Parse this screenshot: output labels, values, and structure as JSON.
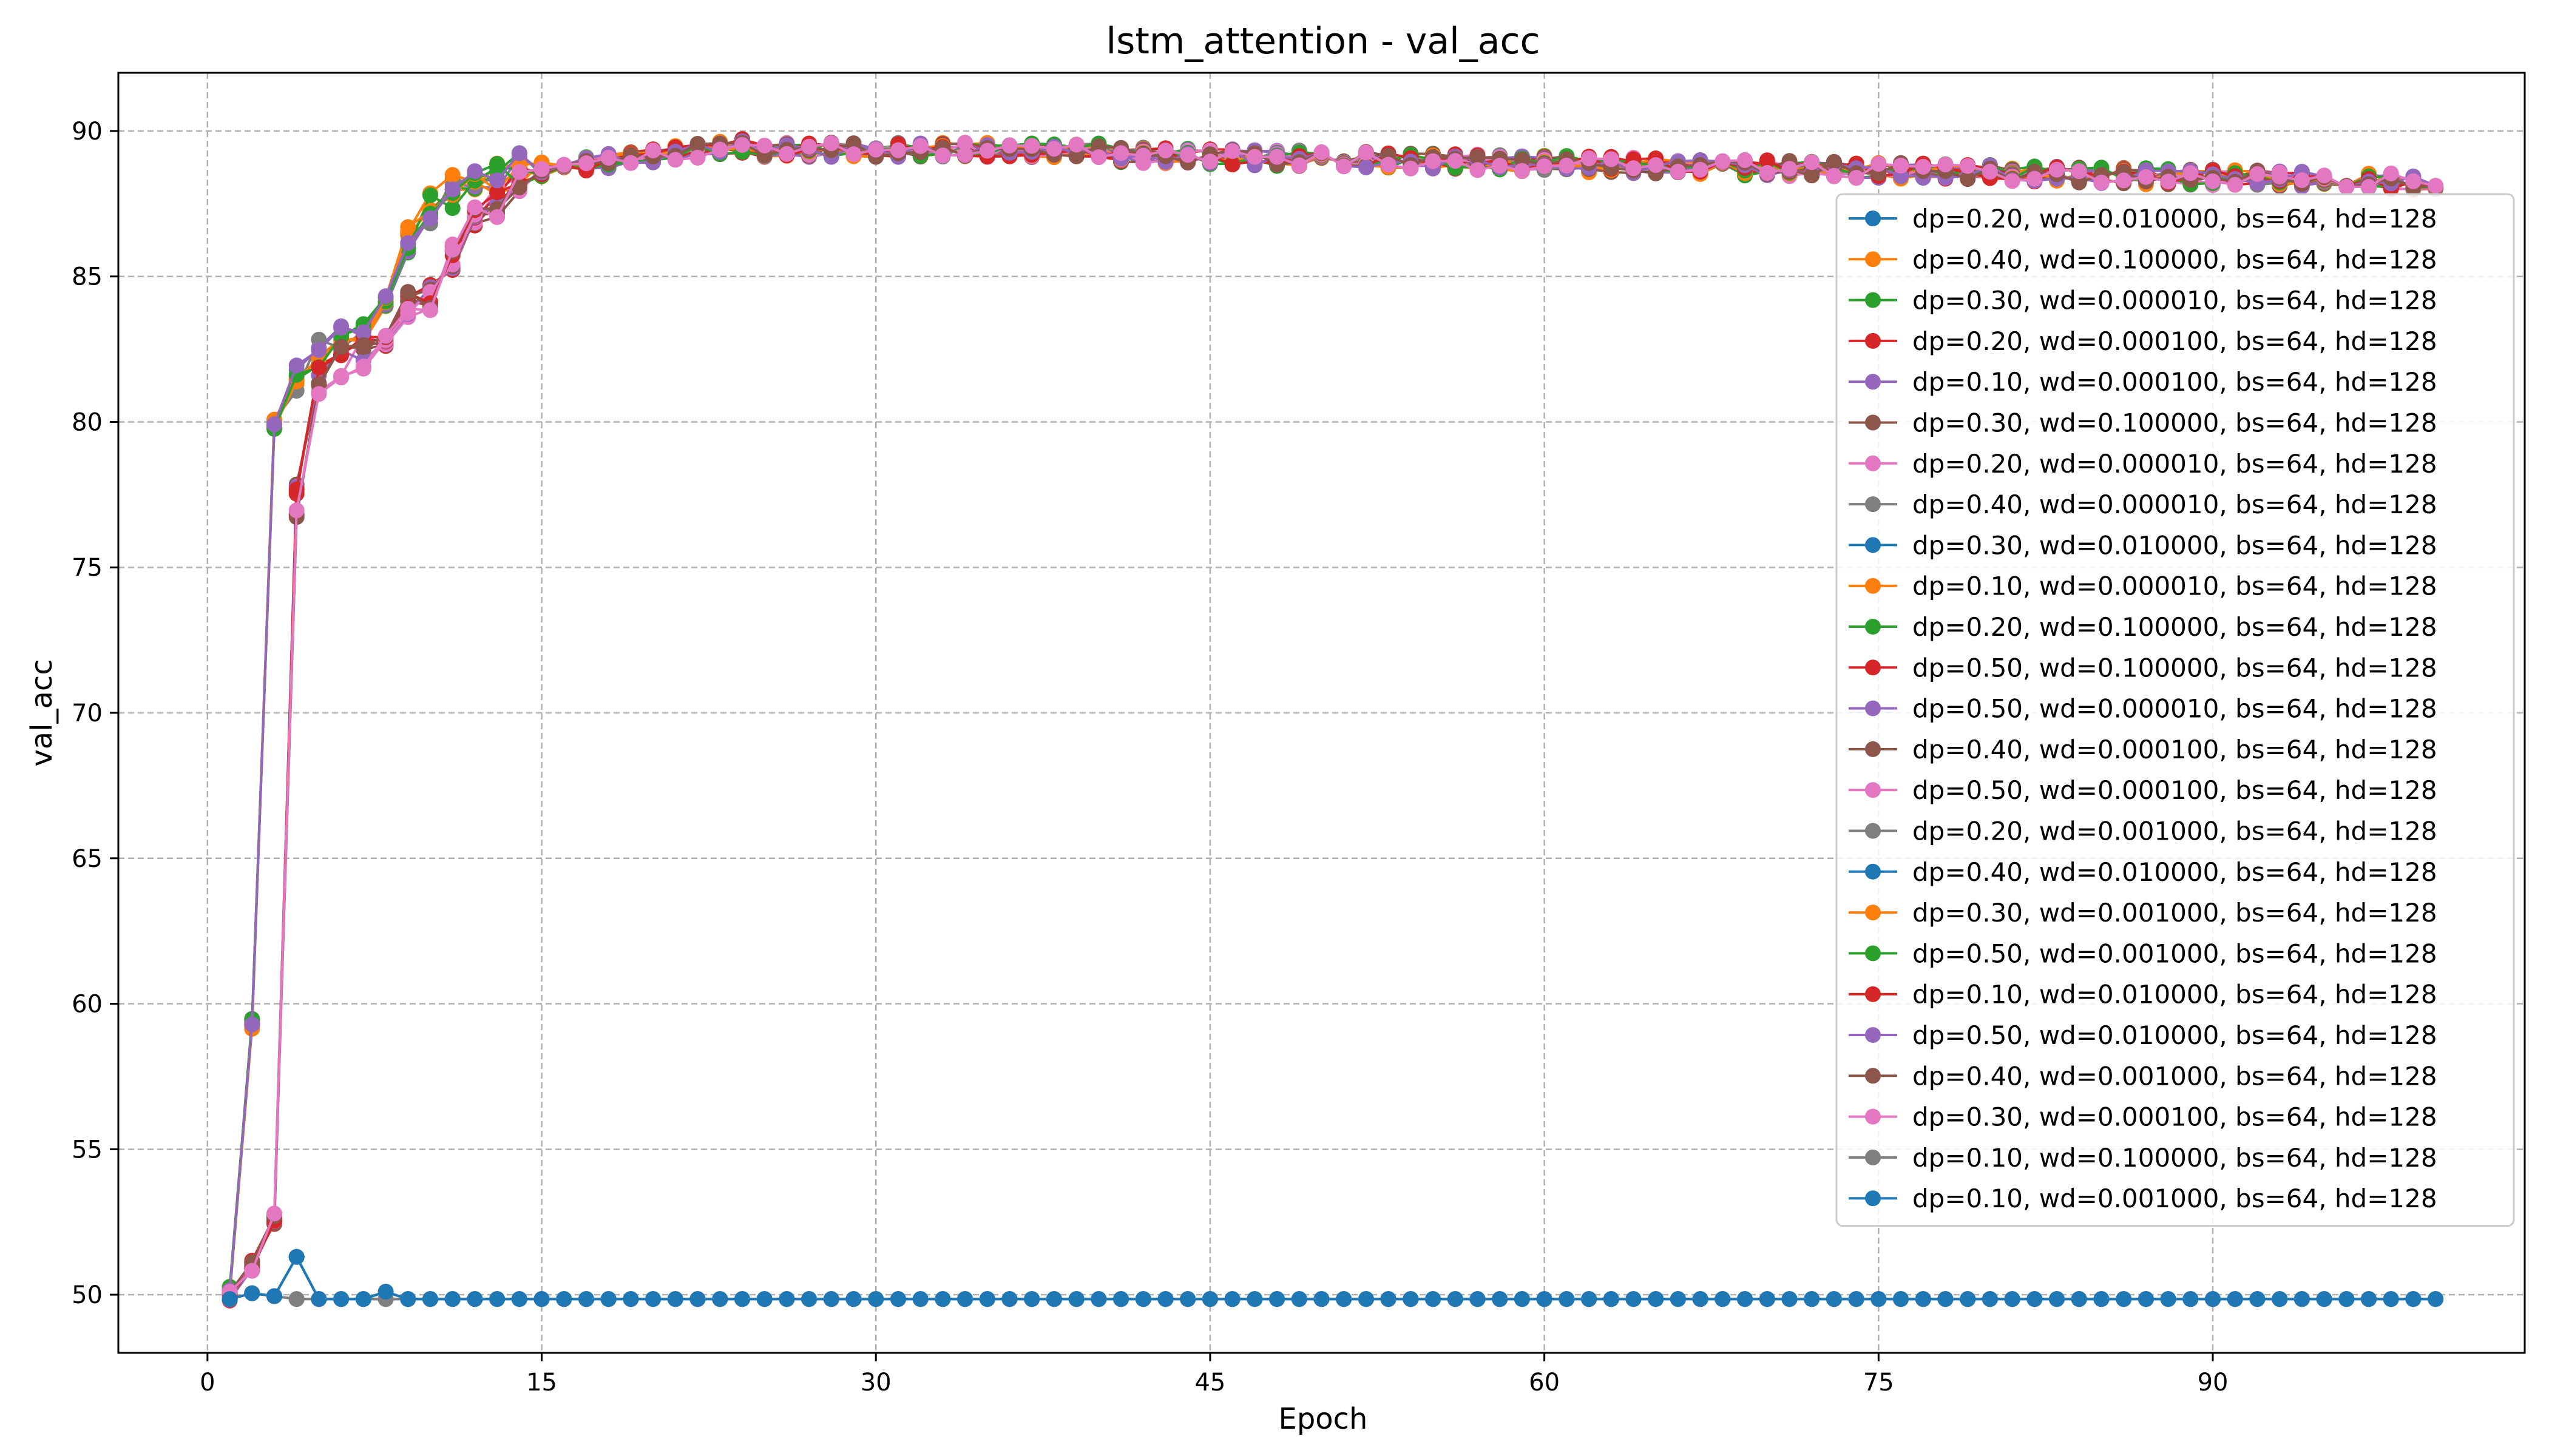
{
  "chart_data": {
    "type": "line",
    "title": "lstm_attention - val_acc",
    "xlabel": "Epoch",
    "ylabel": "val_acc",
    "xlim": [
      -4,
      104
    ],
    "ylim": [
      48.0,
      92.0
    ],
    "xticks": [
      0,
      15,
      30,
      45,
      60,
      75,
      90
    ],
    "yticks": [
      50,
      55,
      60,
      65,
      70,
      75,
      80,
      85,
      90
    ],
    "grid": true,
    "legend_position": "right",
    "colors": [
      "#1f77b4",
      "#ff7f0e",
      "#2ca02c",
      "#d62728",
      "#9467bd",
      "#8c564b",
      "#e377c2",
      "#7f7f7f"
    ],
    "series": [
      {
        "name": "dp=0.20, wd=0.010000, bs=64, hd=128",
        "color": "#1f77b4",
        "profile": "stuck"
      },
      {
        "name": "dp=0.40, wd=0.100000, bs=64, hd=128",
        "color": "#ff7f0e",
        "profile": "fast"
      },
      {
        "name": "dp=0.30, wd=0.000010, bs=64, hd=128",
        "color": "#2ca02c",
        "profile": "fast"
      },
      {
        "name": "dp=0.20, wd=0.000100, bs=64, hd=128",
        "color": "#d62728",
        "profile": "slow"
      },
      {
        "name": "dp=0.10, wd=0.000100, bs=64, hd=128",
        "color": "#9467bd",
        "profile": "fast"
      },
      {
        "name": "dp=0.30, wd=0.100000, bs=64, hd=128",
        "color": "#8c564b",
        "profile": "slow"
      },
      {
        "name": "dp=0.20, wd=0.000010, bs=64, hd=128",
        "color": "#e377c2",
        "profile": "slow"
      },
      {
        "name": "dp=0.40, wd=0.000010, bs=64, hd=128",
        "color": "#7f7f7f",
        "profile": "fast"
      },
      {
        "name": "dp=0.30, wd=0.010000, bs=64, hd=128",
        "color": "#1f77b4",
        "profile": "stuck"
      },
      {
        "name": "dp=0.10, wd=0.000010, bs=64, hd=128",
        "color": "#ff7f0e",
        "profile": "fast"
      },
      {
        "name": "dp=0.20, wd=0.100000, bs=64, hd=128",
        "color": "#2ca02c",
        "profile": "fast"
      },
      {
        "name": "dp=0.50, wd=0.100000, bs=64, hd=128",
        "color": "#d62728",
        "profile": "slow"
      },
      {
        "name": "dp=0.50, wd=0.000010, bs=64, hd=128",
        "color": "#9467bd",
        "profile": "slow"
      },
      {
        "name": "dp=0.40, wd=0.000100, bs=64, hd=128",
        "color": "#8c564b",
        "profile": "slow"
      },
      {
        "name": "dp=0.50, wd=0.000100, bs=64, hd=128",
        "color": "#e377c2",
        "profile": "slow"
      },
      {
        "name": "dp=0.20, wd=0.001000, bs=64, hd=128",
        "color": "#7f7f7f",
        "profile": "stuck"
      },
      {
        "name": "dp=0.40, wd=0.010000, bs=64, hd=128",
        "color": "#1f77b4",
        "profile": "stuck"
      },
      {
        "name": "dp=0.30, wd=0.001000, bs=64, hd=128",
        "color": "#ff7f0e",
        "profile": "fast"
      },
      {
        "name": "dp=0.50, wd=0.001000, bs=64, hd=128",
        "color": "#2ca02c",
        "profile": "fast"
      },
      {
        "name": "dp=0.10, wd=0.010000, bs=64, hd=128",
        "color": "#d62728",
        "profile": "slow"
      },
      {
        "name": "dp=0.50, wd=0.010000, bs=64, hd=128",
        "color": "#9467bd",
        "profile": "fast"
      },
      {
        "name": "dp=0.40, wd=0.001000, bs=64, hd=128",
        "color": "#8c564b",
        "profile": "slow"
      },
      {
        "name": "dp=0.30, wd=0.000100, bs=64, hd=128",
        "color": "#e377c2",
        "profile": "slow"
      },
      {
        "name": "dp=0.10, wd=0.100000, bs=64, hd=128",
        "color": "#7f7f7f",
        "profile": "stuck"
      },
      {
        "name": "dp=0.10, wd=0.001000, bs=64, hd=128",
        "color": "#1f77b4",
        "profile": "stuck"
      }
    ]
  }
}
